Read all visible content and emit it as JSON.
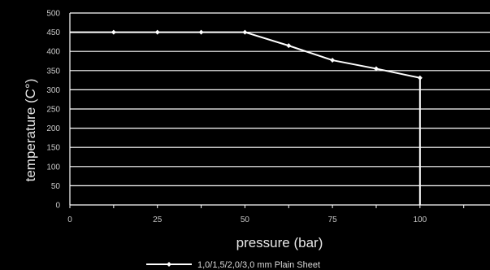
{
  "chart_data": {
    "type": "line",
    "title": "",
    "xlabel": "pressure (bar)",
    "ylabel": "temperature (C°)",
    "xlim": [
      0,
      120
    ],
    "ylim": [
      0,
      500
    ],
    "x_ticks": [
      0,
      25,
      50,
      75,
      100
    ],
    "y_ticks": [
      0,
      50,
      100,
      150,
      200,
      250,
      300,
      350,
      400,
      450,
      500
    ],
    "grid": "horizontal",
    "legend_position": "bottom",
    "series": [
      {
        "name": "1,0/1,5/2,0/3,0 mm Plain Sheet",
        "color": "#ffffff",
        "x": [
          0,
          12.5,
          25,
          37.5,
          50,
          62.5,
          75,
          87.5,
          100,
          100
        ],
        "y": [
          450,
          450,
          450,
          450,
          450,
          415,
          377,
          355,
          331,
          0
        ]
      }
    ]
  }
}
